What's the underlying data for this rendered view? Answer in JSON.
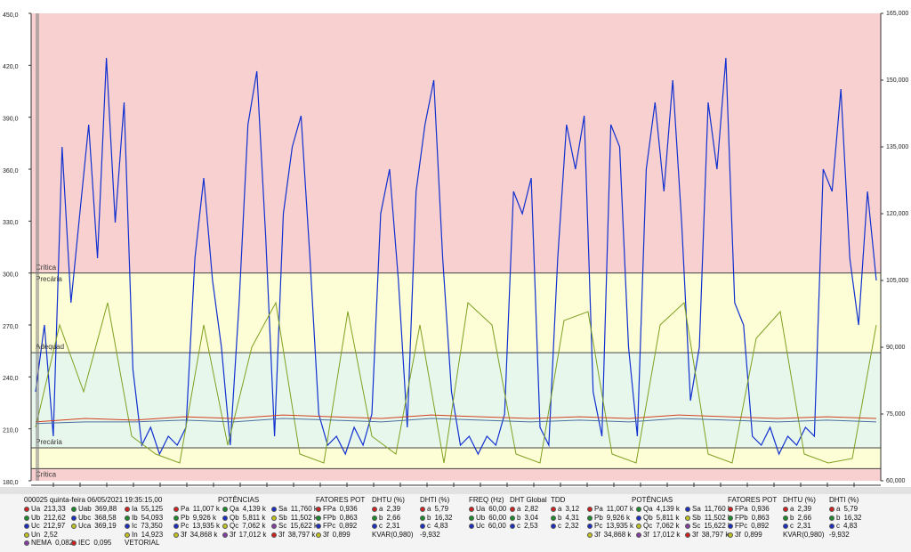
{
  "chart_data": {
    "type": "line",
    "ylim": [
      180,
      450
    ],
    "yticks": [
      {
        "value": 180,
        "label": "180,0"
      },
      {
        "value": 210,
        "label": "210,0"
      },
      {
        "value": 240,
        "label": "240,0"
      },
      {
        "value": 270,
        "label": "270,0"
      },
      {
        "value": 300,
        "label": "300,0"
      },
      {
        "value": 330,
        "label": "330,0"
      },
      {
        "value": 360,
        "label": "360,0"
      },
      {
        "value": 390,
        "label": "390,0"
      },
      {
        "value": 420,
        "label": "420,0"
      },
      {
        "value": 450,
        "label": "450,0"
      }
    ],
    "y2lim": [
      60000,
      165000
    ],
    "y2ticks": [
      {
        "value": 60000,
        "label": "60,000"
      },
      {
        "value": 75000,
        "label": "75,000"
      },
      {
        "value": 90000,
        "label": "90,000"
      },
      {
        "value": 105000,
        "label": "105,000"
      },
      {
        "value": 120000,
        "label": "120,000"
      },
      {
        "value": 135000,
        "label": "135,000"
      },
      {
        "value": 150000,
        "label": "150,000"
      },
      {
        "value": 165000,
        "label": "165,000"
      }
    ],
    "limits": [
      300,
      254,
      199,
      187
    ],
    "band_colors": [
      "#f8d0d0",
      "#fdfdd6",
      "#e8f7ec",
      "#fdfdd6",
      "#f8d0d0"
    ],
    "band_labels": [
      {
        "label": "Crítica",
        "value": 300
      },
      {
        "label": "Precária",
        "value": 300
      },
      {
        "label": "Adequad",
        "value": 254
      },
      {
        "label": "Precária",
        "value": 199
      },
      {
        "label": "Crítica",
        "value": 187
      }
    ],
    "series": [
      {
        "color": "#1030d0",
        "axis": "y2",
        "values": [
          80000,
          95000,
          70000,
          135000,
          100000,
          120000,
          140000,
          110000,
          155000,
          118000,
          145000,
          85000,
          68000,
          72000,
          66000,
          70000,
          68000,
          72000,
          110000,
          128000,
          105000,
          90000,
          68000,
          100000,
          140000,
          152000,
          115000,
          70000,
          120000,
          135000,
          142000,
          110000,
          75000,
          68000,
          70000,
          66000,
          72000,
          68000,
          75000,
          120000,
          130000,
          105000,
          72000,
          125000,
          140000,
          150000,
          110000,
          80000,
          68000,
          70000,
          66000,
          70000,
          68000,
          75000,
          125000,
          120000,
          128000,
          72000,
          68000,
          110000,
          140000,
          130000,
          142000,
          80000,
          70000,
          140000,
          135000,
          90000,
          70000,
          130000,
          145000,
          125000,
          150000,
          118000,
          78000,
          90000,
          145000,
          130000,
          155000,
          100000,
          95000,
          70000,
          68000,
          72000,
          66000,
          70000,
          68000,
          72000,
          70000,
          130000,
          125000,
          148000,
          110000,
          95000,
          125000,
          105000
        ]
      },
      {
        "color": "#7fa020",
        "axis": "y2",
        "values": [
          72000,
          95000,
          80000,
          100000,
          70000,
          66000,
          64000,
          95000,
          68000,
          90000,
          100000,
          66000,
          64000,
          98000,
          70000,
          66000,
          95000,
          64000,
          100000,
          95000,
          66000,
          64000,
          96000,
          98000,
          66000,
          64000,
          95000,
          100000,
          66000,
          64000,
          92000,
          98000,
          66000,
          64000,
          65000,
          95000
        ]
      },
      {
        "color": "#d04020",
        "axis": "y",
        "values": [
          214,
          216,
          215,
          217,
          216,
          218,
          217,
          216,
          218,
          217,
          216,
          217,
          216,
          218,
          217,
          216,
          217,
          216
        ]
      },
      {
        "color": "#4a70a0",
        "axis": "y",
        "values": [
          213,
          214,
          214,
          215,
          214,
          216,
          215,
          214,
          216,
          215,
          214,
          215,
          214,
          216,
          215,
          214,
          215,
          214
        ]
      }
    ]
  },
  "panel": {
    "groups": [
      {
        "title": "000025  quinta-feira 06/05/2021",
        "columns": [
          [
            {
              "label": "Ua",
              "value": "213,33"
            },
            {
              "label": "Ub",
              "value": "212,62"
            },
            {
              "label": "Uc",
              "value": "212,97"
            },
            {
              "label": "Un",
              "value": "2,52"
            },
            {
              "label": "NEMA",
              "value": "0,082"
            }
          ],
          [
            {
              "label": "Uab",
              "value": "369,88"
            },
            {
              "label": "Ubc",
              "value": "368,58"
            },
            {
              "label": "Uca",
              "value": "369,19"
            },
            null,
            {
              "label": "IEC",
              "value": "0,095"
            }
          ]
        ]
      },
      {
        "title": "19:35:15,00",
        "columns": [
          [
            {
              "label": "Ia",
              "value": "55,125"
            },
            {
              "label": "Ib",
              "value": "54,093"
            },
            {
              "label": "Ic",
              "value": "73,350"
            },
            {
              "label": "In",
              "value": "14,923"
            },
            {
              "label": "VETORIAL"
            }
          ]
        ]
      },
      {
        "title": "POTÊNCIAS",
        "columns": [
          [
            {
              "label": "Pa",
              "value": "11,007 k"
            },
            {
              "label": "Pb",
              "value": "9,926 k"
            },
            {
              "label": "Pc",
              "value": "13,935 k"
            },
            {
              "label": "3f",
              "value": "34,868 k"
            }
          ],
          [
            {
              "label": "Qa",
              "value": "4,139 k"
            },
            {
              "label": "Qb",
              "value": "5,811 k"
            },
            {
              "label": "Qc",
              "value": "7,062 k"
            },
            {
              "label": "3f",
              "value": "17,012 k"
            }
          ],
          [
            {
              "label": "Sa",
              "value": "11,760 k"
            },
            {
              "label": "Sb",
              "value": "11,502 k"
            },
            {
              "label": "Sc",
              "value": "15,622 k"
            },
            {
              "label": "3f",
              "value": "38,797 k"
            }
          ]
        ]
      },
      {
        "title": "FATORES POT",
        "columns": [
          [
            {
              "label": "FPa",
              "value": "0,936"
            },
            {
              "label": "FPb",
              "value": "0,863"
            },
            {
              "label": "FPc",
              "value": "0,892"
            },
            {
              "label": "3f",
              "value": "0,899"
            }
          ]
        ]
      },
      {
        "title": "DHTU (%)",
        "columns": [
          [
            {
              "label": "a",
              "value": "2,39"
            },
            {
              "label": "b",
              "value": "2,66"
            },
            {
              "label": "c",
              "value": "2,31"
            },
            {
              "label": "KVAR(0,980)"
            }
          ]
        ]
      },
      {
        "title": "DHTI (%)",
        "columns": [
          [
            {
              "label": "a",
              "value": "5,79"
            },
            {
              "label": "b",
              "value": "16,32"
            },
            {
              "label": "c",
              "value": "4,83"
            },
            {
              "value": "-9,932"
            }
          ]
        ]
      },
      {
        "title": "FREQ (Hz)",
        "columns": [
          [
            {
              "label": "Ua",
              "value": "60,00"
            },
            {
              "label": "Ub",
              "value": "60,00"
            },
            {
              "label": "Uc",
              "value": "60,00"
            }
          ]
        ]
      },
      {
        "title": "DHT Global",
        "columns": [
          [
            {
              "label": "a",
              "value": "2,82"
            },
            {
              "label": "b",
              "value": "3,04"
            },
            {
              "label": "c",
              "value": "2,53"
            }
          ]
        ]
      },
      {
        "title": "TDD",
        "columns": [
          [
            {
              "label": "a",
              "value": "3,12"
            },
            {
              "label": "b",
              "value": "4,31"
            },
            {
              "label": "c",
              "value": "2,32"
            }
          ]
        ]
      },
      {
        "title": "POTÊNCIAS",
        "columns": [
          [
            {
              "label": "Pa",
              "value": "11,007 k"
            },
            {
              "label": "Pb",
              "value": "9,926 k"
            },
            {
              "label": "Pc",
              "value": "13,935 k"
            },
            {
              "label": "3f",
              "value": "34,868 k"
            }
          ],
          [
            {
              "label": "Qa",
              "value": "4,139 k"
            },
            {
              "label": "Qb",
              "value": "5,811 k"
            },
            {
              "label": "Qc",
              "value": "7,062 k"
            },
            {
              "label": "3f",
              "value": "17,012 k"
            }
          ],
          [
            {
              "label": "Sa",
              "value": "11,760 k"
            },
            {
              "label": "Sb",
              "value": "11,502 k"
            },
            {
              "label": "Sc",
              "value": "15,622 k"
            },
            {
              "label": "3f",
              "value": "38,797 k"
            }
          ]
        ]
      },
      {
        "title": "FATORES POT",
        "columns": [
          [
            {
              "label": "FPa",
              "value": "0,936"
            },
            {
              "label": "FPb",
              "value": "0,863"
            },
            {
              "label": "FPc",
              "value": "0,892"
            },
            {
              "label": "3f",
              "value": "0,899"
            }
          ]
        ]
      },
      {
        "title": "DHTU (%)",
        "columns": [
          [
            {
              "label": "a",
              "value": "2,39"
            },
            {
              "label": "b",
              "value": "2,66"
            },
            {
              "label": "c",
              "value": "2,31"
            },
            {
              "label": "KVAR(0,980)"
            }
          ]
        ]
      },
      {
        "title": "DHTI (%)",
        "columns": [
          [
            {
              "label": "a",
              "value": "5,79"
            },
            {
              "label": "b",
              "value": "16,32"
            },
            {
              "label": "c",
              "value": "4,83"
            },
            {
              "value": "-9,932"
            }
          ]
        ]
      }
    ]
  }
}
